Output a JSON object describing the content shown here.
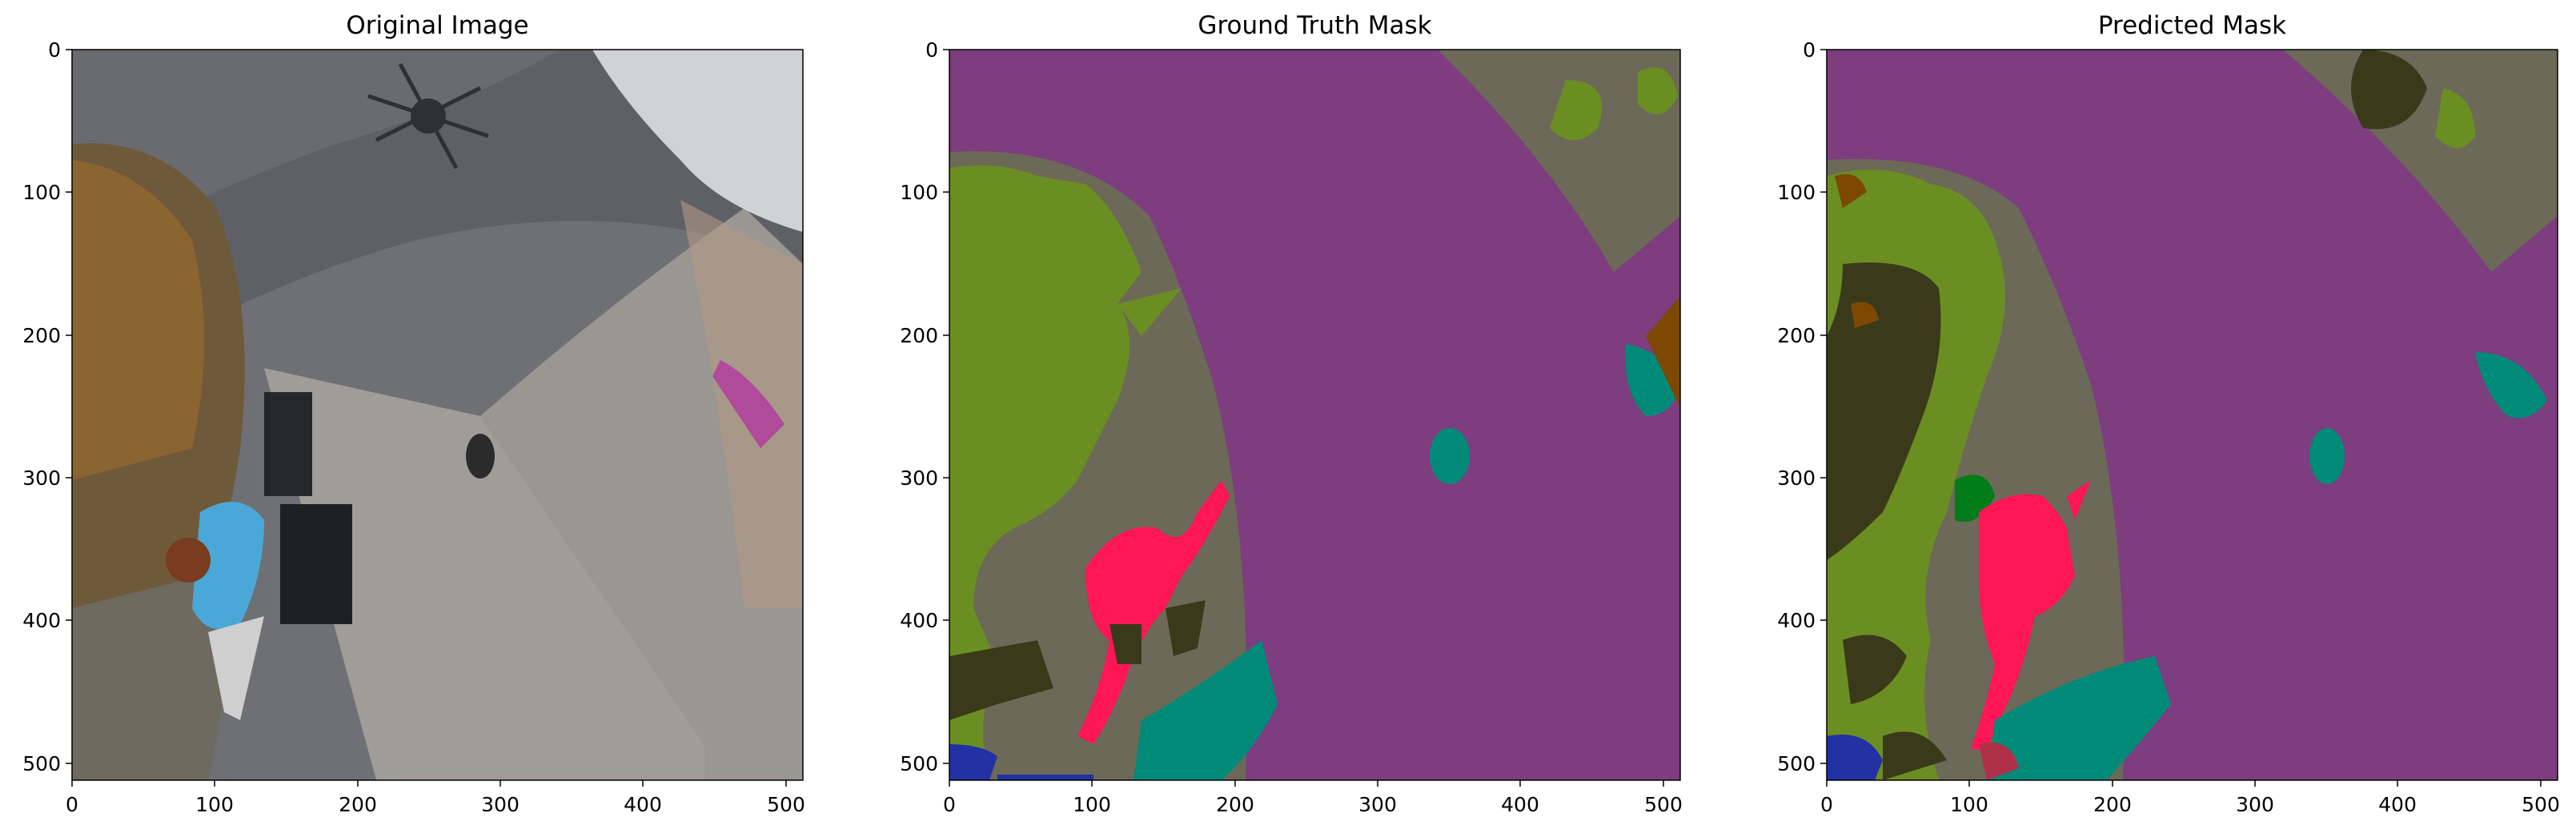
{
  "panels": [
    {
      "title": "Original Image"
    },
    {
      "title": "Ground Truth Mask"
    },
    {
      "title": "Predicted Mask"
    }
  ],
  "axes": {
    "x_ticks": [
      "0",
      "100",
      "200",
      "300",
      "400",
      "500"
    ],
    "y_ticks": [
      "0",
      "100",
      "200",
      "300",
      "400",
      "500"
    ],
    "x_range": [
      0,
      512
    ],
    "y_range": [
      0,
      512
    ]
  },
  "colors": {
    "paved": "#7d3d7e",
    "ground": "#6c6958",
    "vegetation": "#6b8e23",
    "tree": "#3a3a1a",
    "person": "#ff1654",
    "water_teal": "#028a79",
    "blue": "#2231a4",
    "brown": "#7c4802",
    "green": "#007c18"
  }
}
